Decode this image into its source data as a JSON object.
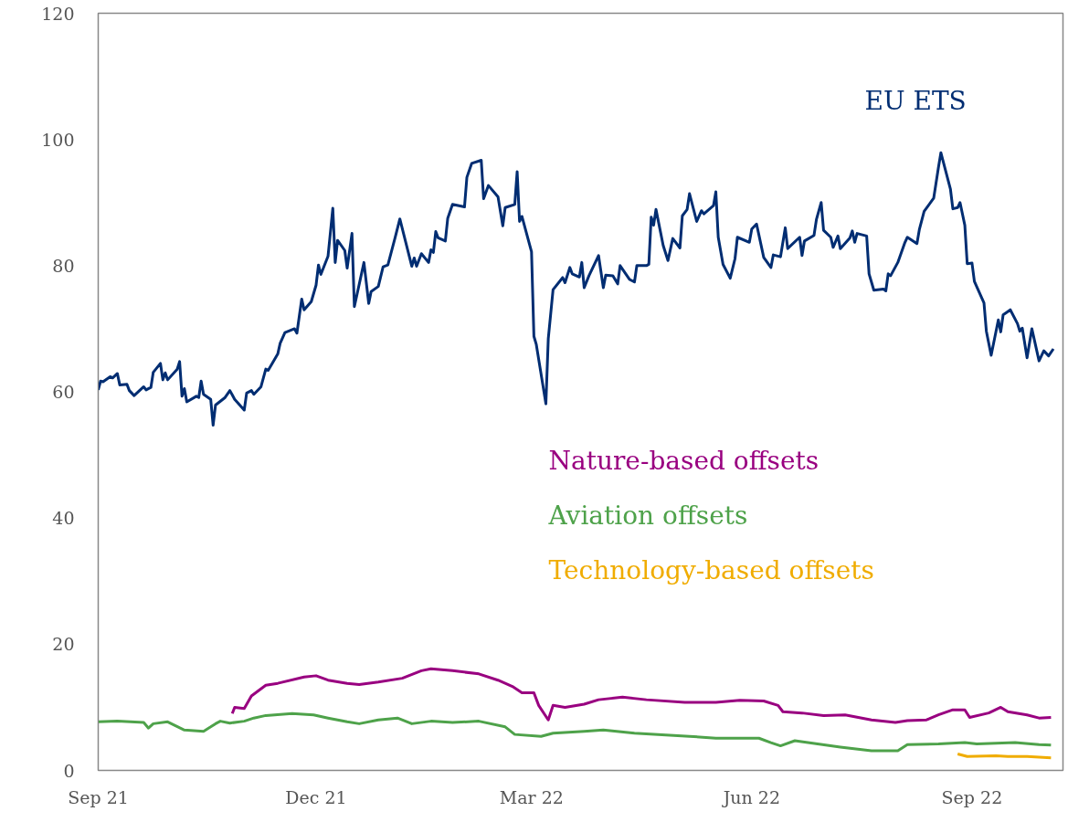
{
  "chart_data": {
    "type": "line",
    "xlim": [
      "2021-09-01",
      "2022-10-09"
    ],
    "ylim": [
      0,
      120
    ],
    "yticks": [
      0,
      20,
      40,
      60,
      80,
      100,
      120
    ],
    "xticks": [
      {
        "value": "2021-09-01",
        "label": "Sep 21"
      },
      {
        "value": "2021-12-01",
        "label": "Dec 21"
      },
      {
        "value": "2022-03-01",
        "label": "Mar 22"
      },
      {
        "value": "2022-06-01",
        "label": "Jun 22"
      },
      {
        "value": "2022-09-01",
        "label": "Sep 22"
      }
    ],
    "series": [
      {
        "name": "EU ETS",
        "color": "#002d72",
        "x": [
          "2021-09-01",
          "2021-09-02",
          "2021-09-03",
          "2021-09-06",
          "2021-09-07",
          "2021-09-09",
          "2021-09-10",
          "2021-09-13",
          "2021-09-14",
          "2021-09-16",
          "2021-09-20",
          "2021-09-21",
          "2021-09-23",
          "2021-09-24",
          "2021-09-27",
          "2021-09-28",
          "2021-09-29",
          "2021-09-30",
          "2021-10-04",
          "2021-10-05",
          "2021-10-06",
          "2021-10-07",
          "2021-10-08",
          "2021-10-12",
          "2021-10-13",
          "2021-10-14",
          "2021-10-15",
          "2021-10-18",
          "2021-10-19",
          "2021-10-20",
          "2021-10-24",
          "2021-10-26",
          "2021-10-28",
          "2021-11-01",
          "2021-11-02",
          "2021-11-04",
          "2021-11-05",
          "2021-11-08",
          "2021-11-10",
          "2021-11-11",
          "2021-11-15",
          "2021-11-16",
          "2021-11-18",
          "2021-11-22",
          "2021-11-23",
          "2021-11-25",
          "2021-11-26",
          "2021-11-29",
          "2021-12-01",
          "2021-12-02",
          "2021-12-03",
          "2021-12-06",
          "2021-12-08",
          "2021-12-09",
          "2021-12-10",
          "2021-12-13",
          "2021-12-14",
          "2021-12-16",
          "2021-12-17",
          "2021-12-21",
          "2021-12-23",
          "2021-12-24",
          "2021-12-27",
          "2021-12-29",
          "2021-12-31",
          "2022-01-03",
          "2022-01-05",
          "2022-01-10",
          "2022-01-11",
          "2022-01-12",
          "2022-01-14",
          "2022-01-17",
          "2022-01-18",
          "2022-01-19",
          "2022-01-20",
          "2022-01-21",
          "2022-01-24",
          "2022-01-25",
          "2022-01-27",
          "2022-02-01",
          "2022-02-02",
          "2022-02-04",
          "2022-02-08",
          "2022-02-09",
          "2022-02-11",
          "2022-02-15",
          "2022-02-17",
          "2022-02-18",
          "2022-02-22",
          "2022-02-23",
          "2022-02-24",
          "2022-02-25",
          "2022-03-01",
          "2022-03-02",
          "2022-03-03",
          "2022-03-07",
          "2022-03-08",
          "2022-03-10",
          "2022-03-14",
          "2022-03-15",
          "2022-03-17",
          "2022-03-18",
          "2022-03-21",
          "2022-03-22",
          "2022-03-23",
          "2022-03-25",
          "2022-03-29",
          "2022-03-31",
          "2022-04-01",
          "2022-04-04",
          "2022-04-06",
          "2022-04-07",
          "2022-04-11",
          "2022-04-13",
          "2022-04-14",
          "2022-04-18",
          "2022-04-19",
          "2022-04-20",
          "2022-04-21",
          "2022-04-22",
          "2022-04-25",
          "2022-04-27",
          "2022-04-29",
          "2022-05-02",
          "2022-05-03",
          "2022-05-05",
          "2022-05-06",
          "2022-05-09",
          "2022-05-11",
          "2022-05-12",
          "2022-05-16",
          "2022-05-17",
          "2022-05-18",
          "2022-05-20",
          "2022-05-23",
          "2022-05-25",
          "2022-05-26",
          "2022-05-31",
          "2022-06-01",
          "2022-06-03",
          "2022-06-06",
          "2022-06-09",
          "2022-06-10",
          "2022-06-13",
          "2022-06-15",
          "2022-06-16",
          "2022-06-21",
          "2022-06-22",
          "2022-06-23",
          "2022-06-27",
          "2022-06-28",
          "2022-06-30",
          "2022-07-01",
          "2022-07-04",
          "2022-07-05",
          "2022-07-07",
          "2022-07-08",
          "2022-07-12",
          "2022-07-13",
          "2022-07-14",
          "2022-07-15",
          "2022-07-19",
          "2022-07-20",
          "2022-07-22",
          "2022-07-26",
          "2022-07-27",
          "2022-07-28",
          "2022-07-29",
          "2022-08-01",
          "2022-08-04",
          "2022-08-05",
          "2022-08-09",
          "2022-08-10",
          "2022-08-12",
          "2022-08-16",
          "2022-08-18",
          "2022-08-19",
          "2022-08-23",
          "2022-08-24",
          "2022-08-26",
          "2022-08-27",
          "2022-08-29",
          "2022-08-30",
          "2022-09-01",
          "2022-09-02",
          "2022-09-06",
          "2022-09-07",
          "2022-09-09",
          "2022-09-12",
          "2022-09-13",
          "2022-09-14",
          "2022-09-17",
          "2022-09-20",
          "2022-09-21",
          "2022-09-22",
          "2022-09-24",
          "2022-09-26",
          "2022-09-29",
          "2022-10-01",
          "2022-10-03",
          "2022-10-05"
        ],
        "values": [
          60.3,
          61.7,
          61.6,
          62.4,
          62.2,
          62.9,
          61.1,
          61.2,
          60.2,
          59.4,
          60.8,
          60.3,
          60.7,
          63.1,
          64.5,
          61.9,
          63.0,
          61.9,
          63.6,
          64.8,
          59.3,
          60.5,
          58.4,
          59.3,
          59.1,
          61.7,
          59.6,
          58.8,
          54.7,
          57.9,
          59.1,
          60.2,
          58.8,
          57.1,
          59.8,
          60.2,
          59.6,
          60.8,
          63.6,
          63.4,
          66.0,
          67.7,
          69.4,
          70.0,
          69.3,
          74.7,
          73.0,
          74.3,
          76.9,
          80.1,
          78.6,
          81.5,
          89.1,
          80.5,
          84.0,
          82.4,
          79.6,
          85.1,
          73.5,
          80.5,
          74.0,
          75.9,
          76.7,
          79.8,
          80.1,
          84.4,
          87.4,
          79.9,
          81.2,
          79.9,
          81.9,
          80.5,
          82.5,
          82.1,
          85.4,
          84.4,
          83.9,
          87.5,
          89.7,
          89.3,
          94.0,
          96.2,
          96.7,
          90.6,
          92.7,
          90.9,
          86.3,
          89.2,
          89.7,
          94.9,
          87.0,
          87.8,
          82.2,
          68.8,
          67.5,
          58.1,
          68.4,
          76.2,
          78.1,
          77.3,
          79.7,
          78.7,
          78.2,
          80.5,
          76.5,
          78.4,
          81.6,
          76.5,
          78.5,
          78.4,
          77.1,
          80.0,
          77.8,
          77.4,
          80.0,
          80.0,
          80.2,
          87.7,
          86.4,
          88.9,
          83.2,
          80.8,
          84.3,
          82.8,
          87.9,
          88.9,
          91.4,
          87.0,
          88.7,
          88.2,
          89.5,
          91.7,
          84.5,
          80.2,
          78.0,
          81.1,
          84.5,
          83.7,
          85.8,
          86.6,
          81.3,
          79.7,
          81.7,
          81.4,
          86.0,
          82.7,
          84.5,
          81.6,
          83.9,
          84.8,
          87.3,
          90.0,
          85.6,
          84.5,
          82.9,
          84.7,
          82.7,
          84.4,
          85.5,
          83.7,
          85.1,
          84.7,
          78.7,
          76.1,
          76.3,
          76.0,
          78.7,
          78.4,
          80.5,
          83.7,
          84.5,
          83.5,
          85.7,
          88.6,
          90.7,
          95.6,
          97.9,
          92.1,
          89.0,
          89.2,
          90.0,
          86.4,
          80.3,
          80.4,
          77.5,
          74.1,
          69.6,
          65.8,
          71.4,
          69.5,
          72.2,
          73.0,
          70.8,
          69.6,
          70.1,
          65.4,
          70.0,
          64.9,
          66.5,
          65.7,
          66.8
        ]
      },
      {
        "name": "Nature-based offsets",
        "color": "#990080",
        "x": [
          "2021-10-27",
          "2021-10-28",
          "2021-11-01",
          "2021-11-04",
          "2021-11-10",
          "2021-11-15",
          "2021-11-26",
          "2021-12-01",
          "2021-12-06",
          "2021-12-14",
          "2021-12-19",
          "2021-12-27",
          "2022-01-06",
          "2022-01-14",
          "2022-01-18",
          "2022-01-27",
          "2022-02-07",
          "2022-02-15",
          "2022-02-21",
          "2022-02-25",
          "2022-03-02",
          "2022-03-04",
          "2022-03-08",
          "2022-03-10",
          "2022-03-15",
          "2022-03-23",
          "2022-03-29",
          "2022-04-08",
          "2022-04-18",
          "2022-05-04",
          "2022-05-17",
          "2022-05-27",
          "2022-06-06",
          "2022-06-12",
          "2022-06-14",
          "2022-06-22",
          "2022-07-01",
          "2022-07-10",
          "2022-07-21",
          "2022-07-31",
          "2022-08-05",
          "2022-08-13",
          "2022-08-18",
          "2022-08-24",
          "2022-08-29",
          "2022-08-31",
          "2022-09-08",
          "2022-09-13",
          "2022-09-16",
          "2022-09-24",
          "2022-09-29",
          "2022-10-04"
        ],
        "values": [
          9.0,
          10.0,
          9.8,
          11.8,
          13.5,
          13.8,
          14.8,
          15.0,
          14.3,
          13.8,
          13.6,
          14.0,
          14.6,
          15.8,
          16.1,
          15.8,
          15.3,
          14.3,
          13.3,
          12.3,
          12.3,
          10.3,
          8.0,
          10.3,
          10.0,
          10.5,
          11.2,
          11.6,
          11.2,
          10.8,
          10.8,
          11.1,
          11.0,
          10.3,
          9.3,
          9.1,
          8.7,
          8.8,
          8.0,
          7.6,
          7.9,
          8.0,
          8.8,
          9.6,
          9.6,
          8.4,
          9.1,
          10.0,
          9.3,
          8.8,
          8.3,
          8.4
        ]
      },
      {
        "name": "Aviation offsets",
        "color": "#4ea24a",
        "x": [
          "2021-09-01",
          "2021-09-09",
          "2021-09-20",
          "2021-09-22",
          "2021-09-24",
          "2021-09-30",
          "2021-10-07",
          "2021-10-15",
          "2021-10-18",
          "2021-10-20",
          "2021-10-22",
          "2021-10-26",
          "2021-11-01",
          "2021-11-05",
          "2021-11-10",
          "2021-11-21",
          "2021-11-30",
          "2021-12-06",
          "2021-12-14",
          "2021-12-19",
          "2021-12-27",
          "2022-01-04",
          "2022-01-10",
          "2022-01-18",
          "2022-01-27",
          "2022-02-07",
          "2022-02-18",
          "2022-02-22",
          "2022-03-05",
          "2022-03-10",
          "2022-03-23",
          "2022-03-31",
          "2022-04-13",
          "2022-05-06",
          "2022-05-17",
          "2022-06-04",
          "2022-06-09",
          "2022-06-13",
          "2022-06-19",
          "2022-07-08",
          "2022-07-21",
          "2022-08-01",
          "2022-08-05",
          "2022-08-18",
          "2022-08-29",
          "2022-09-03",
          "2022-09-19",
          "2022-09-29",
          "2022-10-04"
        ],
        "values": [
          7.7,
          7.8,
          7.6,
          6.7,
          7.4,
          7.7,
          6.4,
          6.2,
          6.9,
          7.4,
          7.8,
          7.5,
          7.8,
          8.3,
          8.7,
          9.0,
          8.8,
          8.3,
          7.7,
          7.4,
          8.0,
          8.3,
          7.4,
          7.8,
          7.6,
          7.8,
          6.9,
          5.7,
          5.4,
          5.9,
          6.2,
          6.4,
          5.9,
          5.4,
          5.1,
          5.1,
          4.4,
          3.9,
          4.7,
          3.7,
          3.1,
          3.1,
          4.1,
          4.2,
          4.4,
          4.2,
          4.4,
          4.1,
          4.0
        ]
      },
      {
        "name": "Technology-based offsets",
        "color": "#f0ac00",
        "x": [
          "2022-08-26",
          "2022-08-30",
          "2022-09-11",
          "2022-09-16",
          "2022-09-24",
          "2022-10-04"
        ],
        "values": [
          2.6,
          2.2,
          2.3,
          2.2,
          2.2,
          2.0
        ]
      }
    ]
  }
}
